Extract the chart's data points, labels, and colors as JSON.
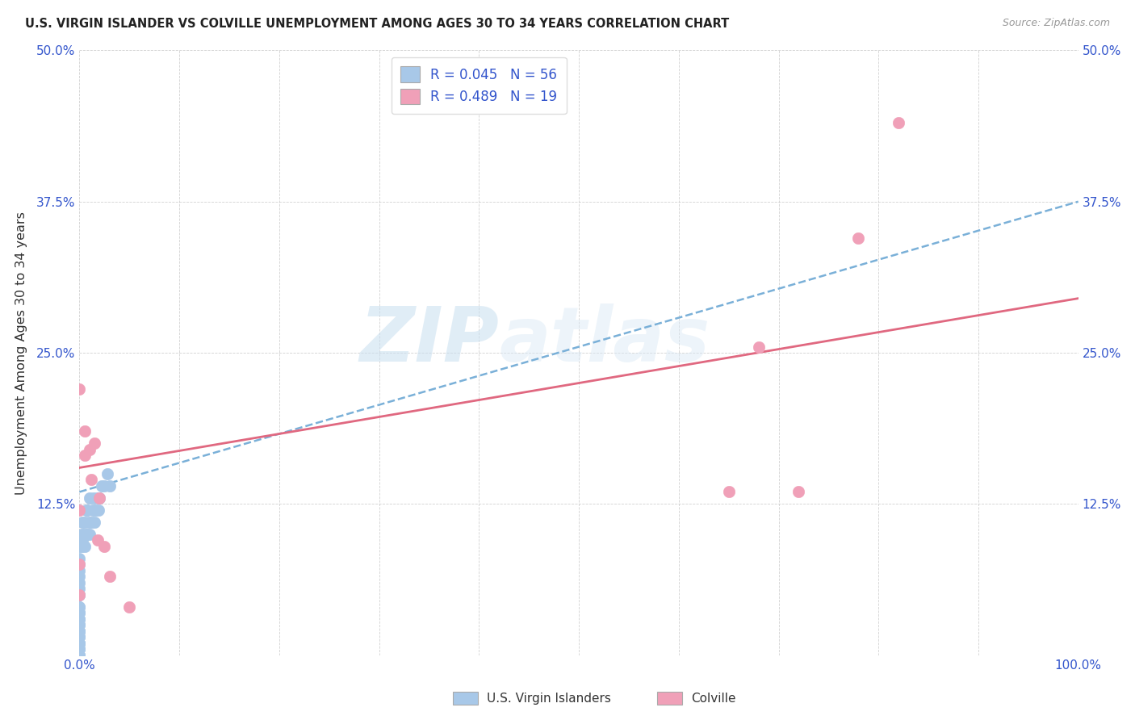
{
  "title": "U.S. VIRGIN ISLANDER VS COLVILLE UNEMPLOYMENT AMONG AGES 30 TO 34 YEARS CORRELATION CHART",
  "source": "Source: ZipAtlas.com",
  "ylabel": "Unemployment Among Ages 30 to 34 years",
  "xlim": [
    0,
    1.0
  ],
  "ylim": [
    0,
    0.5
  ],
  "x_ticks": [
    0.0,
    0.1,
    0.2,
    0.3,
    0.4,
    0.5,
    0.6,
    0.7,
    0.8,
    0.9,
    1.0
  ],
  "x_tick_labels": [
    "0.0%",
    "",
    "",
    "",
    "",
    "",
    "",
    "",
    "",
    "",
    "100.0%"
  ],
  "y_ticks": [
    0.0,
    0.125,
    0.25,
    0.375,
    0.5
  ],
  "y_tick_labels": [
    "",
    "12.5%",
    "25.0%",
    "37.5%",
    "50.0%"
  ],
  "blue_R": 0.045,
  "blue_N": 56,
  "pink_R": 0.489,
  "pink_N": 19,
  "blue_color": "#a8c8e8",
  "pink_color": "#f0a0b8",
  "blue_line_color": "#7ab0d8",
  "pink_line_color": "#e06880",
  "legend_R_color": "#3355cc",
  "watermark_zip": "ZIP",
  "watermark_atlas": "atlas",
  "blue_scatter_x": [
    0.0,
    0.0,
    0.0,
    0.0,
    0.0,
    0.0,
    0.0,
    0.0,
    0.0,
    0.0,
    0.0,
    0.0,
    0.0,
    0.0,
    0.0,
    0.0,
    0.0,
    0.0,
    0.0,
    0.0,
    0.0,
    0.0,
    0.0,
    0.0,
    0.0,
    0.0,
    0.0,
    0.0,
    0.0,
    0.0,
    0.002,
    0.002,
    0.003,
    0.003,
    0.004,
    0.005,
    0.005,
    0.007,
    0.007,
    0.008,
    0.008,
    0.009,
    0.01,
    0.01,
    0.012,
    0.013,
    0.014,
    0.015,
    0.016,
    0.018,
    0.019,
    0.02,
    0.022,
    0.025,
    0.028,
    0.03
  ],
  "blue_scatter_y": [
    0.0,
    0.0,
    0.0,
    0.005,
    0.005,
    0.01,
    0.01,
    0.01,
    0.015,
    0.015,
    0.02,
    0.02,
    0.02,
    0.025,
    0.025,
    0.03,
    0.03,
    0.035,
    0.035,
    0.04,
    0.04,
    0.05,
    0.05,
    0.055,
    0.06,
    0.065,
    0.07,
    0.075,
    0.08,
    0.09,
    0.09,
    0.1,
    0.095,
    0.11,
    0.1,
    0.09,
    0.11,
    0.1,
    0.12,
    0.1,
    0.12,
    0.11,
    0.1,
    0.13,
    0.11,
    0.12,
    0.13,
    0.11,
    0.12,
    0.13,
    0.12,
    0.13,
    0.14,
    0.14,
    0.15,
    0.14
  ],
  "pink_scatter_x": [
    0.0,
    0.0,
    0.0,
    0.0,
    0.005,
    0.005,
    0.01,
    0.012,
    0.015,
    0.018,
    0.02,
    0.025,
    0.03,
    0.05,
    0.65,
    0.68,
    0.72,
    0.78,
    0.82
  ],
  "pink_scatter_y": [
    0.05,
    0.075,
    0.12,
    0.22,
    0.165,
    0.185,
    0.17,
    0.145,
    0.175,
    0.095,
    0.13,
    0.09,
    0.065,
    0.04,
    0.135,
    0.255,
    0.135,
    0.345,
    0.44
  ],
  "blue_line_x0": 0.0,
  "blue_line_x1": 1.0,
  "blue_line_y0": 0.135,
  "blue_line_y1": 0.375,
  "pink_line_x0": 0.0,
  "pink_line_x1": 1.0,
  "pink_line_y0": 0.155,
  "pink_line_y1": 0.295,
  "bottom_legend_items": [
    {
      "label": "U.S. Virgin Islanders",
      "color": "#a8c8e8"
    },
    {
      "label": "Colville",
      "color": "#f0a0b8"
    }
  ]
}
